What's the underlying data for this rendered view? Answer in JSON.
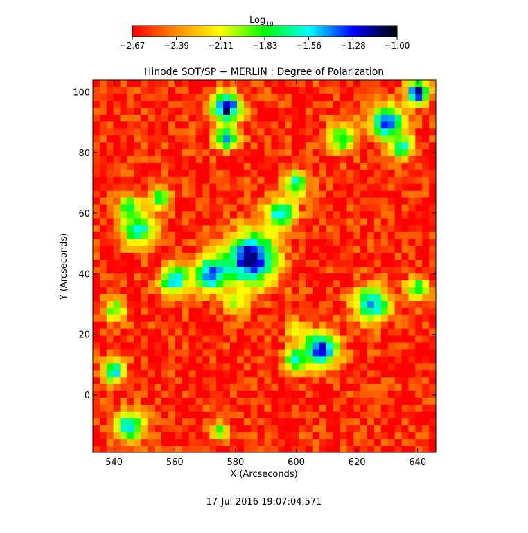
{
  "colorbar": {
    "label_main": "Log",
    "label_sub": "10",
    "ticks": [
      "−2.67",
      "−2.39",
      "−2.11",
      "−1.83",
      "−1.56",
      "−1.28",
      "−1.00"
    ],
    "colors": [
      "#ff0000",
      "#ff8c00",
      "#ffff00",
      "#00ff00",
      "#00ffff",
      "#0000ff",
      "#000000"
    ]
  },
  "timestamp": "17-Jul-2016 19:07:04.571",
  "chart_data": {
    "type": "heatmap",
    "title": "Hinode SOT/SP − MERLIN : Degree of Polarization",
    "xlabel": "X (Arcseconds)",
    "ylabel": "Y (Arcseconds)",
    "xlim": [
      533,
      646
    ],
    "ylim": [
      -19,
      104
    ],
    "xticks": [
      540,
      560,
      580,
      600,
      620,
      640
    ],
    "yticks": [
      0,
      20,
      40,
      60,
      80,
      100
    ],
    "colorscale": "log10",
    "value_range": [
      -2.67,
      -1.0
    ],
    "background_level": -2.6,
    "features": [
      {
        "x": 585,
        "y": 45,
        "r": 9,
        "v": -1.05
      },
      {
        "x": 572,
        "y": 40,
        "r": 6,
        "v": -1.3
      },
      {
        "x": 560,
        "y": 38,
        "r": 5,
        "v": -1.45
      },
      {
        "x": 548,
        "y": 55,
        "r": 6,
        "v": -1.6
      },
      {
        "x": 545,
        "y": 62,
        "r": 4,
        "v": -1.7
      },
      {
        "x": 555,
        "y": 65,
        "r": 4,
        "v": -1.8
      },
      {
        "x": 577,
        "y": 95,
        "r": 5,
        "v": -1.1
      },
      {
        "x": 577,
        "y": 85,
        "r": 4,
        "v": -1.45
      },
      {
        "x": 595,
        "y": 60,
        "r": 5,
        "v": -1.45
      },
      {
        "x": 600,
        "y": 70,
        "r": 4,
        "v": -1.6
      },
      {
        "x": 630,
        "y": 90,
        "r": 6,
        "v": -1.35
      },
      {
        "x": 615,
        "y": 85,
        "r": 5,
        "v": -1.7
      },
      {
        "x": 640,
        "y": 100,
        "r": 4,
        "v": -1.2
      },
      {
        "x": 625,
        "y": 30,
        "r": 6,
        "v": -1.4
      },
      {
        "x": 640,
        "y": 35,
        "r": 4,
        "v": -1.7
      },
      {
        "x": 608,
        "y": 15,
        "r": 6,
        "v": -1.2
      },
      {
        "x": 600,
        "y": 12,
        "r": 4,
        "v": -1.6
      },
      {
        "x": 540,
        "y": 8,
        "r": 4,
        "v": -1.5
      },
      {
        "x": 545,
        "y": -10,
        "r": 5,
        "v": -1.5
      },
      {
        "x": 540,
        "y": 28,
        "r": 4,
        "v": -1.8
      },
      {
        "x": 580,
        "y": 30,
        "r": 4,
        "v": -1.9
      },
      {
        "x": 600,
        "y": 22,
        "r": 3,
        "v": -1.9
      },
      {
        "x": 635,
        "y": 82,
        "r": 4,
        "v": -1.6
      },
      {
        "x": 575,
        "y": -12,
        "r": 3,
        "v": -1.9
      }
    ]
  }
}
